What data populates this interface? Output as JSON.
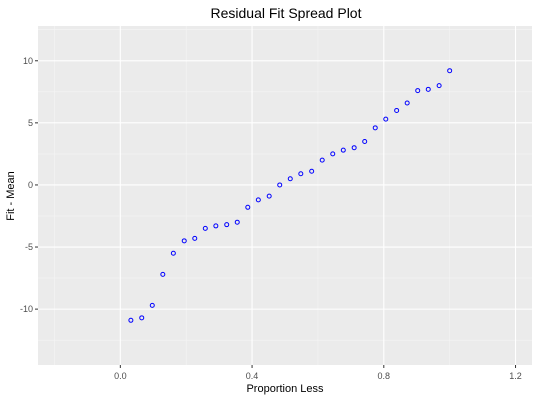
{
  "chart_data": {
    "type": "scatter",
    "title": "Residual Fit Spread Plot",
    "xlabel": "Proportion Less",
    "ylabel": "Fit - Mean",
    "xlim": [
      -0.25,
      1.25
    ],
    "ylim": [
      -14.5,
      12.8
    ],
    "x_ticks": [
      0.0,
      0.4,
      0.8,
      1.2
    ],
    "x_tick_labels": [
      "0.0",
      "0.4",
      "0.8",
      "1.2"
    ],
    "y_ticks": [
      -10,
      -5,
      0,
      5,
      10
    ],
    "y_tick_labels": [
      "-10",
      "-5",
      "0",
      "5",
      "10"
    ],
    "grid": true,
    "colors": {
      "panel": "#ebebeb",
      "grid_major": "#ffffff",
      "grid_minor": "#f5f5f5",
      "point": "#0000ff",
      "tick": "#333333"
    },
    "series": [
      {
        "x": [
          0.032,
          0.065,
          0.097,
          0.129,
          0.161,
          0.194,
          0.226,
          0.258,
          0.29,
          0.323,
          0.355,
          0.387,
          0.419,
          0.452,
          0.484,
          0.516,
          0.548,
          0.581,
          0.613,
          0.645,
          0.677,
          0.71,
          0.742,
          0.774,
          0.806,
          0.839,
          0.871,
          0.903,
          0.935,
          0.968,
          1.0
        ],
        "y": [
          -10.9,
          -10.7,
          -9.7,
          -7.2,
          -5.5,
          -4.5,
          -4.3,
          -3.5,
          -3.3,
          -3.2,
          -3.0,
          -1.8,
          -1.2,
          -0.9,
          0.0,
          0.5,
          0.9,
          1.1,
          2.0,
          2.5,
          2.8,
          3.0,
          3.5,
          4.6,
          5.3,
          6.0,
          6.6,
          7.6,
          7.7,
          8.0,
          9.2
        ]
      }
    ]
  }
}
